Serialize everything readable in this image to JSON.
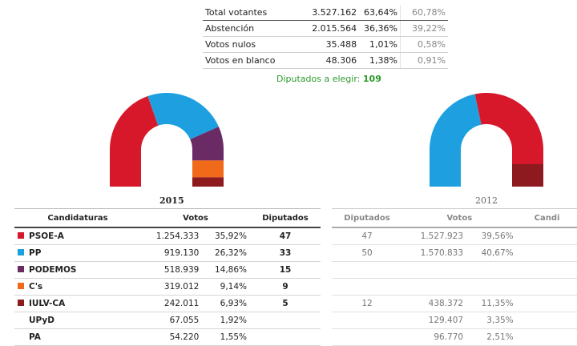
{
  "summary": {
    "rows": [
      {
        "label": "Total votantes",
        "votes": "3.527.162",
        "pct": "63,64%",
        "pct_prev": "60,78%"
      },
      {
        "label": "Abstención",
        "votes": "2.015.564",
        "pct": "36,36%",
        "pct_prev": "39,22%"
      },
      {
        "label": "Votos nulos",
        "votes": "35.488",
        "pct": "1,01%",
        "pct_prev": "0,58%"
      },
      {
        "label": "Votos en blanco",
        "votes": "48.306",
        "pct": "1,38%",
        "pct_prev": "0,91%"
      }
    ],
    "diputados_label": "Diputados a elegir:",
    "diputados_value": "109"
  },
  "years": {
    "current": "2015",
    "previous": "2012"
  },
  "table_2015": {
    "headers": {
      "cand": "Candidaturas",
      "votos": "Votos",
      "dip": "Diputados"
    },
    "rows": [
      {
        "party": "PSOE-A",
        "color": "#d7182a",
        "votes": "1.254.333",
        "pct": "35,92%",
        "seats": "47"
      },
      {
        "party": "PP",
        "color": "#1ea0e0",
        "votes": "919.130",
        "pct": "26,32%",
        "seats": "33"
      },
      {
        "party": "PODEMOS",
        "color": "#6a2a64",
        "votes": "518.939",
        "pct": "14,86%",
        "seats": "15"
      },
      {
        "party": "C's",
        "color": "#f06a1a",
        "votes": "319.012",
        "pct": "9,14%",
        "seats": "9"
      },
      {
        "party": "IULV-CA",
        "color": "#8c1a1f",
        "votes": "242.011",
        "pct": "6,93%",
        "seats": "5"
      },
      {
        "party": "UPyD",
        "color": "",
        "votes": "67.055",
        "pct": "1,92%",
        "seats": ""
      },
      {
        "party": "PA",
        "color": "",
        "votes": "54.220",
        "pct": "1,55%",
        "seats": ""
      }
    ]
  },
  "table_2012": {
    "headers": {
      "dip": "Diputados",
      "votos": "Votos",
      "cand": "Candi"
    },
    "rows": [
      {
        "seats": "47",
        "votes": "1.527.923",
        "pct": "39,56%"
      },
      {
        "seats": "50",
        "votes": "1.570.833",
        "pct": "40,67%"
      },
      {
        "seats": "",
        "votes": "",
        "pct": ""
      },
      {
        "seats": "",
        "votes": "",
        "pct": ""
      },
      {
        "seats": "12",
        "votes": "438.372",
        "pct": "11,35%"
      },
      {
        "seats": "",
        "votes": "129.407",
        "pct": "3,35%"
      },
      {
        "seats": "",
        "votes": "96.770",
        "pct": "2,51%"
      }
    ]
  },
  "chart_data": [
    {
      "type": "pie",
      "subtitle": "2015",
      "categories": [
        "PSOE-A",
        "PP",
        "PODEMOS",
        "C's",
        "IULV-CA"
      ],
      "values": [
        47,
        33,
        15,
        9,
        5
      ],
      "colors": [
        "#d7182a",
        "#1ea0e0",
        "#6a2a64",
        "#f06a1a",
        "#8c1a1f"
      ]
    },
    {
      "type": "pie",
      "subtitle": "2012",
      "categories": [
        "PP",
        "PSOE-A",
        "IULV-CA"
      ],
      "values": [
        50,
        47,
        12
      ],
      "colors": [
        "#1ea0e0",
        "#d7182a",
        "#8c1a1f"
      ]
    }
  ]
}
